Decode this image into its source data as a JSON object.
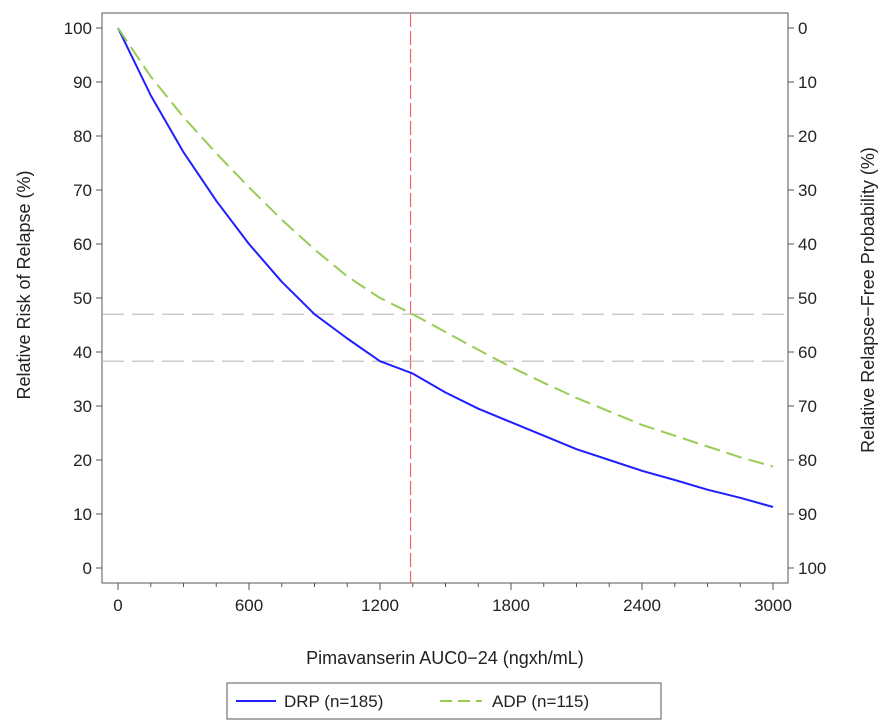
{
  "chart_data": {
    "type": "line",
    "xlabel": "Pimavanserin AUC0−24 (ngxh/mL)",
    "ylabel_left": "Relative Risk of Relapse (%)",
    "ylabel_right": "Relative Relapse−Free Probability (%)",
    "xlim": [
      0,
      3000
    ],
    "ylim": [
      0,
      100
    ],
    "xticks": [
      "0",
      "600",
      "1200",
      "1800",
      "2400",
      "3000"
    ],
    "yticks_left": [
      "0",
      "10",
      "20",
      "30",
      "40",
      "50",
      "60",
      "70",
      "80",
      "90",
      "100"
    ],
    "yticks_right": [
      "100",
      "90",
      "80",
      "70",
      "60",
      "50",
      "40",
      "30",
      "20",
      "10",
      "0"
    ],
    "series": [
      {
        "name": "DRP (n=185)",
        "color": "#1f1fff",
        "style": "solid",
        "x": [
          0,
          150,
          300,
          450,
          600,
          750,
          900,
          1050,
          1200,
          1350,
          1500,
          1650,
          1800,
          1950,
          2100,
          2250,
          2400,
          2550,
          2700,
          2850,
          3000
        ],
        "y": [
          100,
          87.5,
          77,
          68,
          60,
          53,
          47,
          42.5,
          38.3,
          36,
          32.5,
          29.5,
          27,
          24.5,
          22,
          20,
          18,
          16.3,
          14.5,
          13,
          11.3
        ]
      },
      {
        "name": "ADP (n=115)",
        "color": "#99cc55",
        "style": "dashed",
        "x": [
          0,
          150,
          300,
          450,
          600,
          750,
          900,
          1050,
          1200,
          1350,
          1500,
          1650,
          1800,
          1950,
          2100,
          2250,
          2400,
          2550,
          2700,
          2850,
          3000
        ],
        "y": [
          100,
          91,
          83.5,
          76.8,
          70.5,
          64.5,
          59,
          54,
          50,
          47,
          43.7,
          40.4,
          37.2,
          34.3,
          31.5,
          29,
          26.5,
          24.5,
          22.5,
          20.5,
          18.8
        ]
      }
    ],
    "reference_lines": {
      "vertical_x": 1340,
      "horizontal_y": [
        47,
        38.3
      ],
      "vertical_color": "#ee6666",
      "horizontal_color": "#bbbbbb"
    },
    "grid": false,
    "legend": {
      "position": "bottom-center",
      "entries": [
        "DRP (n=185)",
        "ADP (n=115)"
      ]
    }
  }
}
